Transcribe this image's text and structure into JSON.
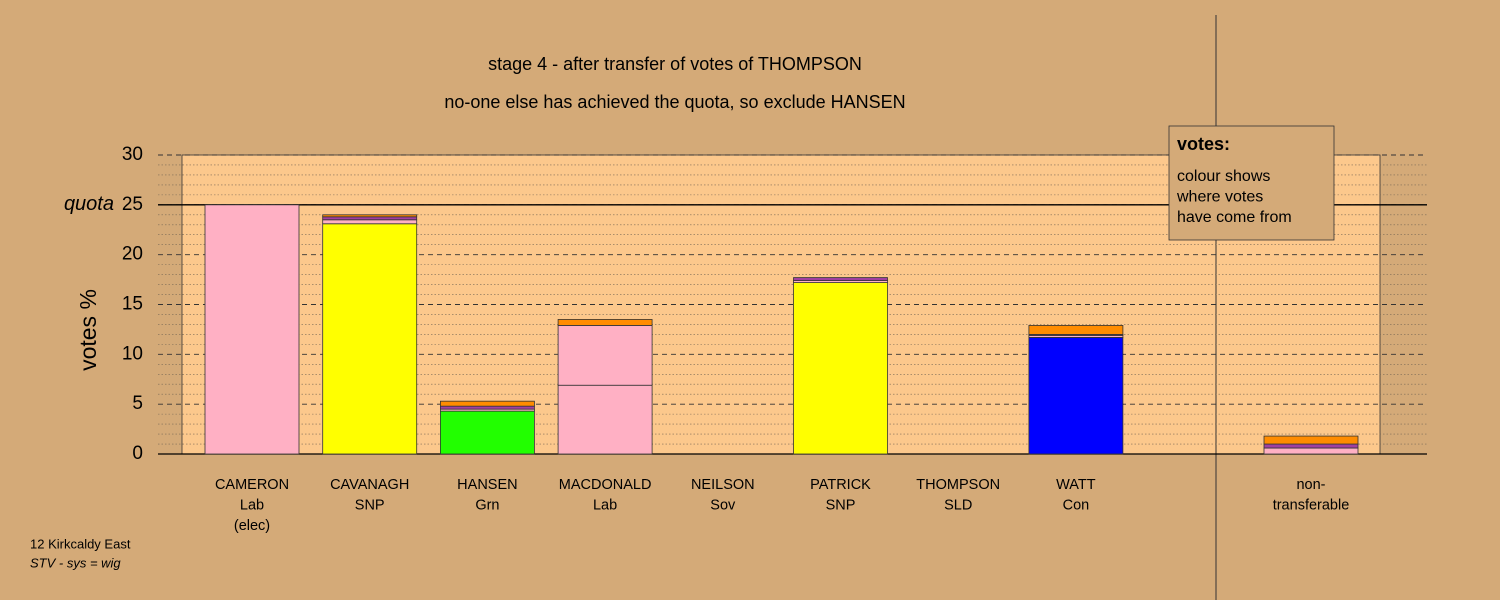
{
  "chart_data": {
    "type": "stacked-bar",
    "title": "stage 4 - after transfer of votes of THOMPSON",
    "subtitle": "no-one else has achieved the quota, so exclude HANSEN",
    "y_label": "votes %",
    "quota": {
      "value": 25,
      "label": "quota"
    },
    "ylim": [
      0,
      30
    ],
    "yticks": [
      0,
      5,
      10,
      15,
      20,
      25,
      30
    ],
    "minor_yticks": [
      1,
      2,
      3,
      4,
      6,
      7,
      8,
      9,
      11,
      12,
      13,
      14,
      16,
      17,
      18,
      19,
      21,
      22,
      23,
      24,
      26,
      27,
      28,
      29
    ],
    "grid": true,
    "categories": [
      [
        "CAMERON",
        "Lab",
        "(elec)"
      ],
      [
        "CAVANAGH",
        "SNP"
      ],
      [
        "HANSEN",
        "Grn"
      ],
      [
        "MACDONALD",
        "Lab"
      ],
      [
        "NEILSON",
        "Sov"
      ],
      [
        "PATRICK",
        "SNP"
      ],
      [
        "THOMPSON",
        "SLD"
      ],
      [
        "WATT",
        "Con"
      ],
      [
        "non-",
        "transferable"
      ]
    ],
    "stacks": [
      [
        {
          "color": "#ffb0c4",
          "value": 25.0
        }
      ],
      [
        {
          "color": "#ffff00",
          "value": 23.1
        },
        {
          "color": "#ffb0c4",
          "value": 0.4
        },
        {
          "color": "#a040a0",
          "value": 0.3
        },
        {
          "color": "#ff8c00",
          "value": 0.2
        }
      ],
      [
        {
          "color": "#22ff00",
          "value": 4.3
        },
        {
          "color": "#ffb0c4",
          "value": 0.2
        },
        {
          "color": "#a040a0",
          "value": 0.3
        },
        {
          "color": "#ff8c00",
          "value": 0.5
        }
      ],
      [
        {
          "color": "#ffb0c4",
          "value": 6.9
        },
        {
          "color": "#ffb0c4",
          "value": 6.0
        },
        {
          "color": "#ff8c00",
          "value": 0.6
        }
      ],
      [
        {
          "color": "#ffff00",
          "value": 0
        }
      ],
      [
        {
          "color": "#ffff00",
          "value": 17.2
        },
        {
          "color": "#ffb0c4",
          "value": 0.2
        },
        {
          "color": "#a040a0",
          "value": 0.3
        }
      ],
      [
        {
          "color": "#ff8c00",
          "value": 0
        }
      ],
      [
        {
          "color": "#0000ff",
          "value": 11.7
        },
        {
          "color": "#ffb0c4",
          "value": 0.2
        },
        {
          "color": "#a040a0",
          "value": 0.1
        },
        {
          "color": "#ff8c00",
          "value": 0.9
        }
      ],
      [
        {
          "color": "#ffb0c4",
          "value": 0.6
        },
        {
          "color": "#a040a0",
          "value": 0.4
        },
        {
          "color": "#ff8c00",
          "value": 0.8
        }
      ]
    ],
    "legend": {
      "title": "votes:",
      "lines": [
        "colour shows",
        "where votes",
        "have come from"
      ]
    },
    "footer": {
      "area": "12 Kirkcaldy East",
      "system": "STV - sys = wig"
    }
  }
}
